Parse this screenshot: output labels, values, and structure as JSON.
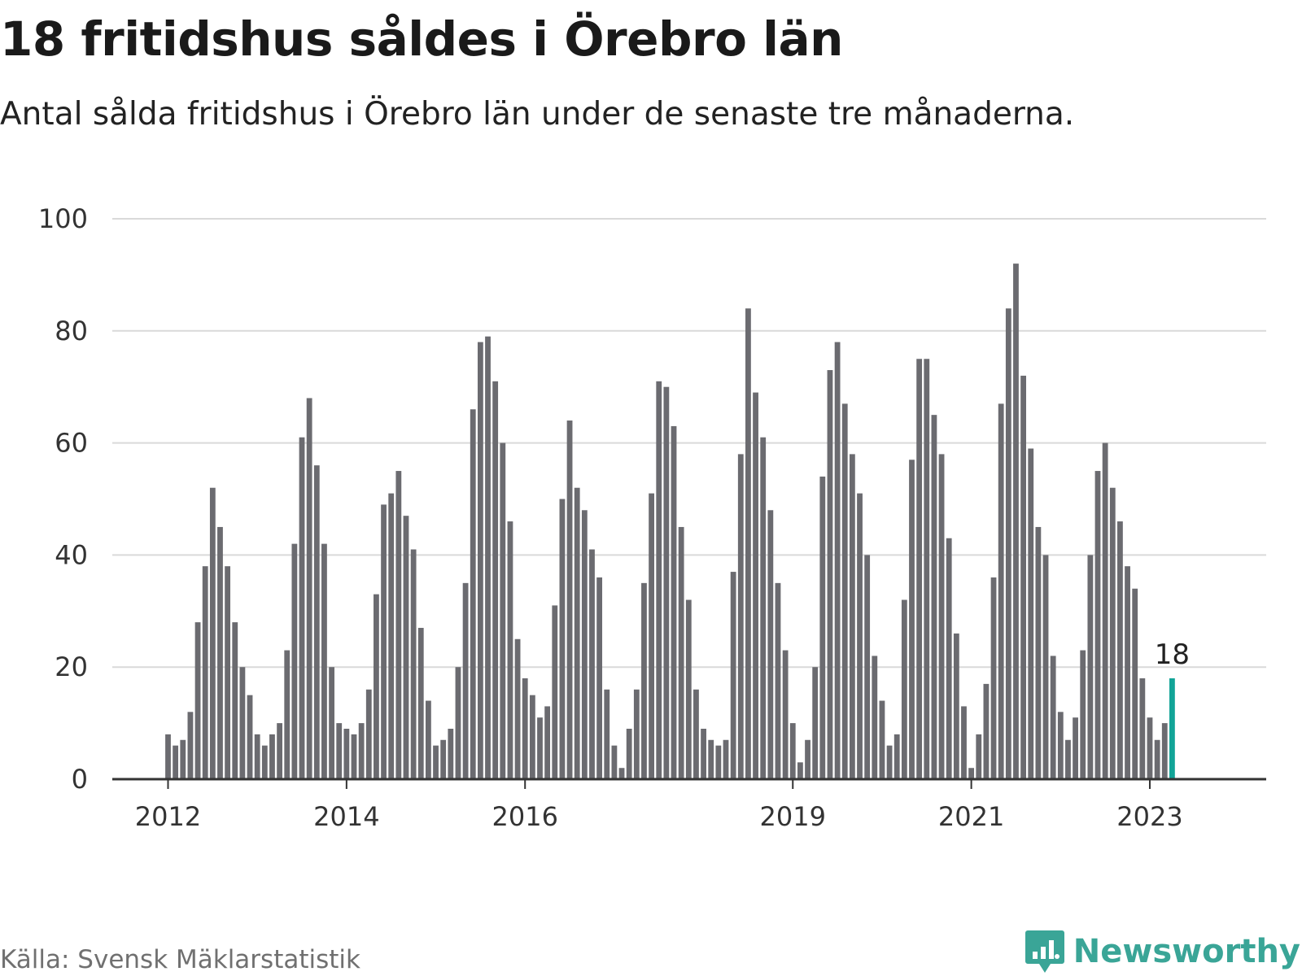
{
  "title": "18 fritidshus såldes i Örebro län",
  "subtitle": "Antal sålda fritidshus i Örebro län under de senaste tre månaderna.",
  "source": "Källa: Svensk Mäklarstatistik",
  "brand": "Newsworthy",
  "colors": {
    "bar": "#6b6b70",
    "highlight": "#12a497",
    "grid": "#d9d9d9",
    "axis": "#333333",
    "brand": "#3aa597"
  },
  "chart_data": {
    "type": "bar",
    "start": "2012-01",
    "ylim": [
      0,
      100
    ],
    "yticks": [
      0,
      20,
      40,
      60,
      80,
      100
    ],
    "xticks": [
      {
        "label": "2012",
        "month_index": 0
      },
      {
        "label": "2014",
        "month_index": 24
      },
      {
        "label": "2016",
        "month_index": 48
      },
      {
        "label": "2019",
        "month_index": 84
      },
      {
        "label": "2021",
        "month_index": 108
      },
      {
        "label": "2023",
        "month_index": 132
      }
    ],
    "values": [
      8,
      6,
      7,
      12,
      28,
      38,
      52,
      45,
      38,
      28,
      20,
      15,
      8,
      6,
      8,
      10,
      23,
      42,
      61,
      68,
      56,
      42,
      20,
      10,
      9,
      8,
      10,
      16,
      33,
      49,
      51,
      55,
      47,
      41,
      27,
      14,
      6,
      7,
      9,
      20,
      35,
      66,
      78,
      79,
      71,
      60,
      46,
      25,
      18,
      15,
      11,
      13,
      31,
      50,
      64,
      52,
      48,
      41,
      36,
      16,
      6,
      2,
      9,
      16,
      35,
      51,
      71,
      70,
      63,
      45,
      32,
      16,
      9,
      7,
      6,
      7,
      37,
      58,
      84,
      69,
      61,
      48,
      35,
      23,
      10,
      3,
      7,
      20,
      54,
      73,
      78,
      67,
      58,
      51,
      40,
      22,
      14,
      6,
      8,
      32,
      57,
      75,
      75,
      65,
      58,
      43,
      26,
      13,
      2,
      8,
      17,
      36,
      67,
      84,
      92,
      72,
      59,
      45,
      40,
      22,
      12,
      7,
      11,
      23,
      40,
      55,
      60,
      52,
      46,
      38,
      34,
      18,
      11,
      7,
      10,
      18
    ],
    "highlight_label": "18"
  }
}
